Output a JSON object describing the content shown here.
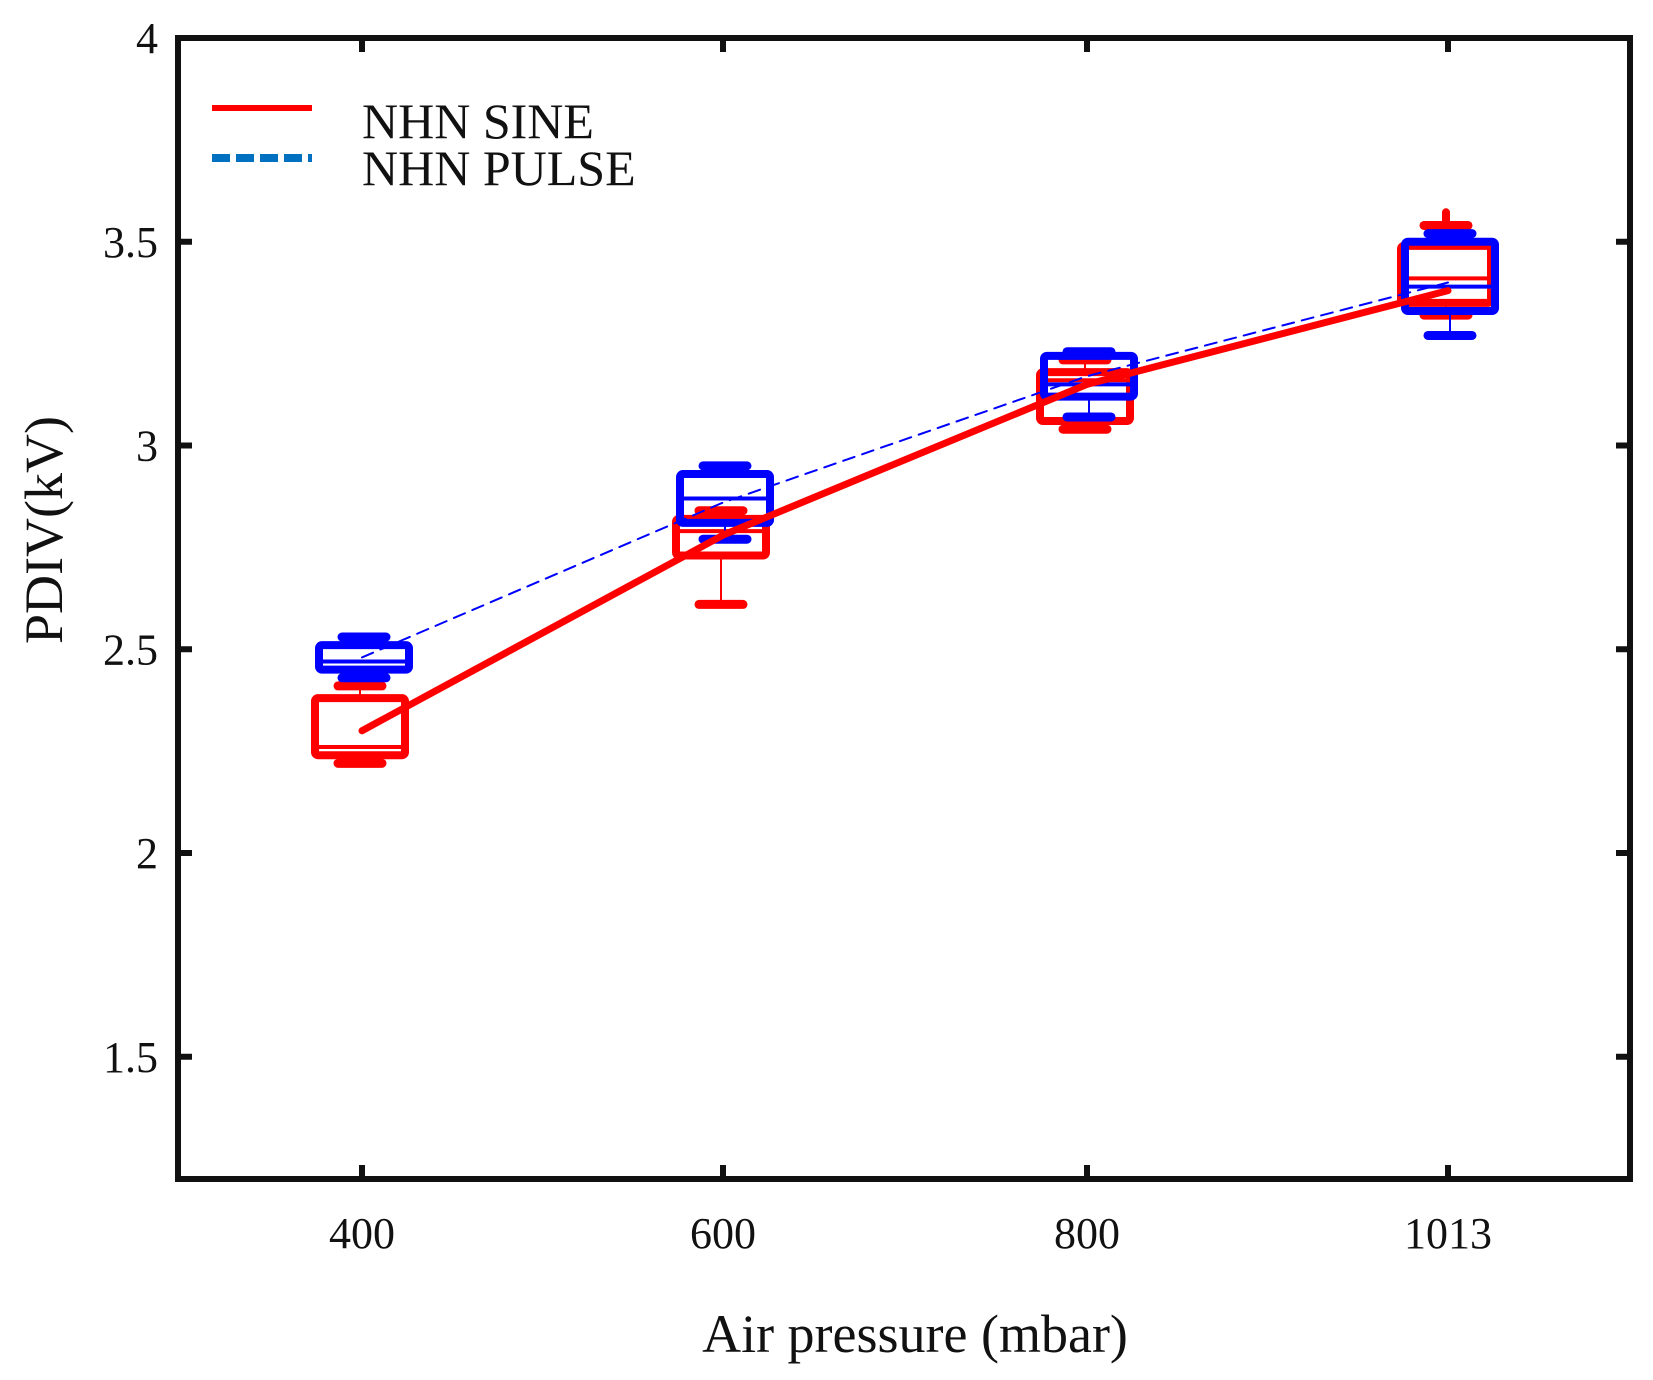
{
  "chart_data": {
    "type": "box",
    "title": "",
    "xlabel": "Air pressure (mbar)",
    "ylabel": "PDIV(kV)",
    "categories": [
      "400",
      "600",
      "800",
      "1013"
    ],
    "ylim": [
      1.2,
      4
    ],
    "yticks": [
      1.5,
      2,
      2.5,
      3,
      3.5,
      4
    ],
    "ytick_labels": [
      "1.5",
      "2",
      "2.5",
      "3",
      "3.5",
      "4"
    ],
    "grid": false,
    "legend_position": "top-left",
    "series": [
      {
        "name": "NHN SINE",
        "color": "#ff0000",
        "line_style": "solid",
        "mean_line": [
          2.3,
          2.78,
          3.15,
          3.38
        ],
        "boxes": [
          {
            "whisker_low": 2.22,
            "q1": 2.24,
            "median": 2.26,
            "q3": 2.38,
            "whisker_high": 2.41
          },
          {
            "whisker_low": 2.61,
            "q1": 2.73,
            "median": 2.79,
            "q3": 2.82,
            "whisker_high": 2.84
          },
          {
            "whisker_low": 3.04,
            "q1": 3.06,
            "median": 3.16,
            "q3": 3.18,
            "whisker_high": 3.21
          },
          {
            "whisker_low": 3.32,
            "q1": 3.35,
            "median": 3.41,
            "q3": 3.49,
            "whisker_high": 3.54
          }
        ],
        "outliers": [
          {
            "category": "1013",
            "value": 3.56
          }
        ]
      },
      {
        "name": "NHN PULSE",
        "color": "#0000ff",
        "legend_color": "#0070c0",
        "line_style": "dashed",
        "mean_line": [
          2.48,
          2.86,
          3.17,
          3.4
        ],
        "boxes": [
          {
            "whisker_low": 2.43,
            "q1": 2.45,
            "median": 2.47,
            "q3": 2.51,
            "whisker_high": 2.53
          },
          {
            "whisker_low": 2.77,
            "q1": 2.81,
            "median": 2.87,
            "q3": 2.93,
            "whisker_high": 2.95
          },
          {
            "whisker_low": 3.07,
            "q1": 3.12,
            "median": 3.15,
            "q3": 3.22,
            "whisker_high": 3.23
          },
          {
            "whisker_low": 3.27,
            "q1": 3.33,
            "median": 3.39,
            "q3": 3.5,
            "whisker_high": 3.52
          }
        ],
        "outliers": []
      }
    ]
  }
}
